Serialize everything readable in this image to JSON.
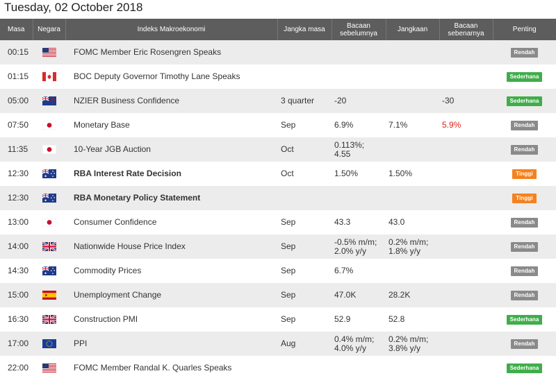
{
  "page_title": "Tuesday, 02 October 2018",
  "columns": {
    "time": "Masa",
    "country": "Negara",
    "indicator": "Indeks Makroekonomi",
    "period": "Jangka masa",
    "previous": "Bacaan sebelumnya",
    "forecast": "Jangkaan",
    "actual": "Bacaan sebenarnya",
    "importance": "Penting"
  },
  "importance_colors": {
    "Rendah": "#8a8a8a",
    "Sederhana": "#3fae49",
    "Tinggi": "#f5821f"
  },
  "events": [
    {
      "time": "00:15",
      "flag": "us-flag-icon",
      "event": "FOMC Member Eric Rosengren Speaks",
      "bold": false,
      "period": "",
      "previous": "",
      "forecast": "",
      "actual": "",
      "actual_negative": false,
      "importance": "Rendah"
    },
    {
      "time": "01:15",
      "flag": "ca-flag-icon",
      "event": "BOC Deputy Governor Timothy Lane Speaks",
      "bold": false,
      "period": "",
      "previous": "",
      "forecast": "",
      "actual": "",
      "actual_negative": false,
      "importance": "Sederhana"
    },
    {
      "time": "05:00",
      "flag": "nz-flag-icon",
      "event": "NZIER Business Confidence",
      "bold": false,
      "period": "3 quarter",
      "previous": "-20",
      "forecast": "",
      "actual": "-30",
      "actual_negative": false,
      "importance": "Sederhana"
    },
    {
      "time": "07:50",
      "flag": "jp-flag-icon",
      "event": "Monetary Base",
      "bold": false,
      "period": "Sep",
      "previous": "6.9%",
      "forecast": "7.1%",
      "actual": "5.9%",
      "actual_negative": true,
      "importance": "Rendah"
    },
    {
      "time": "11:35",
      "flag": "jp-flag-icon",
      "event": "10-Year JGB Auction",
      "bold": false,
      "period": "Oct",
      "previous": "0.113%;\n4.55",
      "forecast": "",
      "actual": "",
      "actual_negative": false,
      "importance": "Rendah"
    },
    {
      "time": "12:30",
      "flag": "au-flag-icon",
      "event": "RBA Interest Rate Decision",
      "bold": true,
      "period": "Oct",
      "previous": "1.50%",
      "forecast": "1.50%",
      "actual": "",
      "actual_negative": false,
      "importance": "Tinggi"
    },
    {
      "time": "12:30",
      "flag": "au-flag-icon",
      "event": "RBA Monetary Policy Statement",
      "bold": true,
      "period": "",
      "previous": "",
      "forecast": "",
      "actual": "",
      "actual_negative": false,
      "importance": "Tinggi"
    },
    {
      "time": "13:00",
      "flag": "jp-flag-icon",
      "event": "Consumer Confidence",
      "bold": false,
      "period": "Sep",
      "previous": "43.3",
      "forecast": "43.0",
      "actual": "",
      "actual_negative": false,
      "importance": "Rendah"
    },
    {
      "time": "14:00",
      "flag": "uk-flag-icon",
      "event": "Nationwide House Price Index",
      "bold": false,
      "period": "Sep",
      "previous": "-0.5% m/m;\n2.0% y/y",
      "forecast": "0.2% m/m;\n1.8% y/y",
      "actual": "",
      "actual_negative": false,
      "importance": "Rendah"
    },
    {
      "time": "14:30",
      "flag": "au-flag-icon",
      "event": "Commodity Prices",
      "bold": false,
      "period": "Sep",
      "previous": "6.7%",
      "forecast": "",
      "actual": "",
      "actual_negative": false,
      "importance": "Rendah"
    },
    {
      "time": "15:00",
      "flag": "es-flag-icon",
      "event": "Unemployment Change",
      "bold": false,
      "period": "Sep",
      "previous": "47.0K",
      "forecast": "28.2K",
      "actual": "",
      "actual_negative": false,
      "importance": "Rendah"
    },
    {
      "time": "16:30",
      "flag": "uk-flag-icon",
      "event": "Construction PMI",
      "bold": false,
      "period": "Sep",
      "previous": "52.9",
      "forecast": "52.8",
      "actual": "",
      "actual_negative": false,
      "importance": "Sederhana"
    },
    {
      "time": "17:00",
      "flag": "eu-flag-icon",
      "event": "PPI",
      "bold": false,
      "period": "Aug",
      "previous": "0.4% m/m;\n4.0% y/y",
      "forecast": "0.2% m/m;\n3.8% y/y",
      "actual": "",
      "actual_negative": false,
      "importance": "Rendah"
    },
    {
      "time": "22:00",
      "flag": "us-flag-icon",
      "event": "FOMC Member Randal K. Quarles Speaks",
      "bold": false,
      "period": "",
      "previous": "",
      "forecast": "",
      "actual": "",
      "actual_negative": false,
      "importance": "Sederhana"
    }
  ]
}
